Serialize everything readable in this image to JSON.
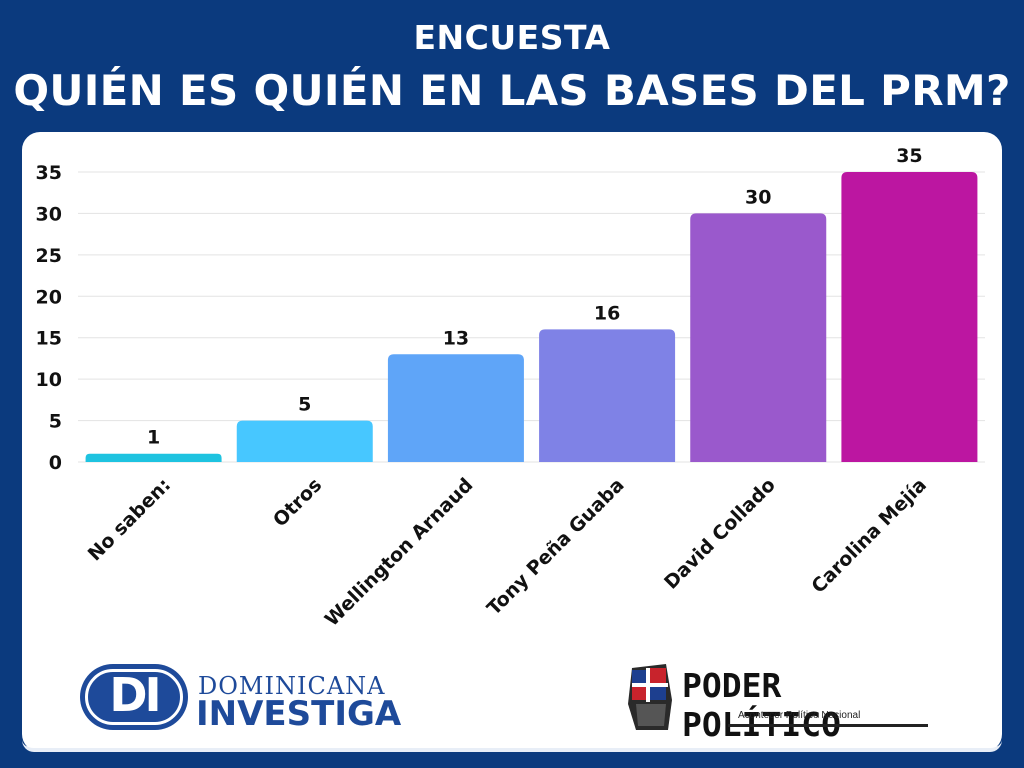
{
  "header": {
    "kicker": "ENCUESTA",
    "title": "QUIÉN ES QUIÉN EN LAS BASES DEL PRM?"
  },
  "chart_data": {
    "type": "bar",
    "title": "QUIÉN ES QUIÉN EN LAS BASES DEL PRM?",
    "xlabel": "",
    "ylabel": "",
    "categories": [
      "No saben:",
      "Otros",
      "Wellington Arnaud",
      "Tony Peña Guaba",
      "David Collado",
      "Carolina Mejía"
    ],
    "values": [
      1,
      5,
      13,
      16,
      30,
      35
    ],
    "colors": [
      "#1ec3e0",
      "#47c7ff",
      "#5fa5f8",
      "#7f82e6",
      "#9a59cc",
      "#bc16a1"
    ],
    "ylim": [
      0,
      35
    ],
    "yticks": [
      0,
      5,
      10,
      15,
      20,
      25,
      30,
      35
    ],
    "grid": true,
    "legend": "none"
  },
  "logos": {
    "left": {
      "mark": "DI",
      "line1": "DOMINICANA",
      "line2": "INVESTIGA",
      "color": "#1e4a9a"
    },
    "right": {
      "name": "PODER POLÍTICO",
      "tagline": "Acontecer Político Nacional"
    }
  }
}
